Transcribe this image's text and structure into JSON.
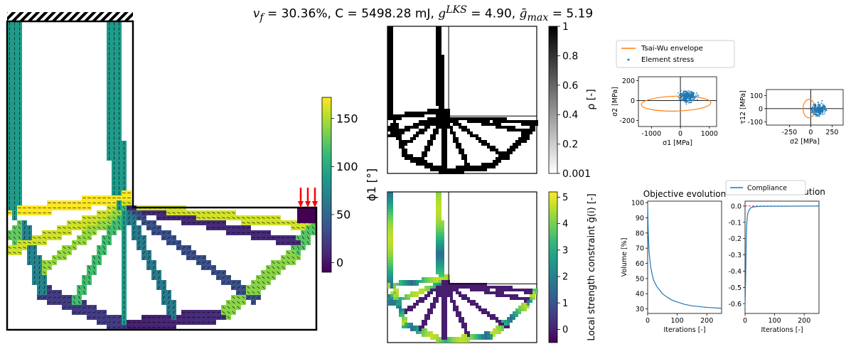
{
  "figure": {
    "title_parts": {
      "vf_label": "v",
      "vf_sub": "f",
      "vf_value": " = 30.36%, ",
      "c_text": "C = 5498.28 mJ, ",
      "g_label": "g",
      "g_sup": "LKS",
      "g_value": " = 4.90, ",
      "gmax_label": "ḡ",
      "gmax_sub": "max",
      "gmax_value": " = 5.19"
    },
    "colors": {
      "viridis": [
        "#440154",
        "#482878",
        "#3e4989",
        "#31688e",
        "#26828e",
        "#1f9e89",
        "#35b779",
        "#6ece58",
        "#b5de2b",
        "#fde725"
      ],
      "series_blue": "#1f77b4",
      "envelope_orange": "#ff7f0e",
      "load_arrow_red": "#ff0000",
      "constraint_dashed_red": "#d62728"
    }
  },
  "chart_data": [
    {
      "id": "fiber_orientation_field",
      "type": "heatmap",
      "colorbar": {
        "label": "ϕ1 [°]",
        "ticks": [
          "0",
          "50",
          "100",
          "150"
        ],
        "range": [
          -10,
          172
        ]
      },
      "load_arrows": 3
    },
    {
      "id": "density_field",
      "type": "heatmap",
      "colorbar": {
        "label": "ρ [-]",
        "ticks": [
          "0.001",
          "0.2",
          "0.4",
          "0.6",
          "0.8",
          "1"
        ],
        "range": [
          0.001,
          1
        ]
      }
    },
    {
      "id": "local_strength_constraint_field",
      "type": "heatmap",
      "colorbar": {
        "label": "Local strength constraint ḡ(i) [-]",
        "ticks": [
          "0",
          "1",
          "2",
          "3",
          "4",
          "5"
        ],
        "range": [
          -0.5,
          5.2
        ]
      }
    },
    {
      "id": "stress_sigma1_sigma2",
      "type": "scatter",
      "legend": {
        "entries": [
          "Tsai-Wu envelope",
          "Element stress"
        ],
        "placement": "top"
      },
      "xlabel": "σ1 [MPa]",
      "ylabel": "σ2 [MPa]",
      "xlim": [
        -1450,
        1250
      ],
      "ylim": [
        -260,
        240
      ],
      "xticks": [
        -1000,
        0,
        1000
      ],
      "yticks": [
        -200,
        0,
        200
      ],
      "envelope": {
        "type": "ellipse",
        "center": [
          -150,
          -30
        ],
        "semi_major": 1200,
        "semi_minor": 75,
        "angle_deg": 1.5
      },
      "cluster": {
        "center": [
          250,
          40
        ],
        "spread": [
          300,
          60
        ],
        "count": 260
      }
    },
    {
      "id": "stress_sigma2_tau12",
      "type": "scatter",
      "xlabel": "σ2 [MPa]",
      "ylabel": "τ12 [MPa]",
      "xlim": [
        -520,
        380
      ],
      "ylim": [
        -125,
        145
      ],
      "xticks": [
        -250,
        0,
        250
      ],
      "yticks": [
        -100,
        0,
        100
      ],
      "envelope": {
        "type": "ellipse",
        "center": [
          -20,
          0
        ],
        "rx": 70,
        "ry": 70
      },
      "cluster": {
        "center": [
          90,
          -5
        ],
        "spread": [
          90,
          55
        ],
        "count": 240
      }
    },
    {
      "id": "objective_evolution",
      "type": "line",
      "title": "Objective evolution",
      "xlabel": "Iterations [-]",
      "ylabel": "Volume [%]",
      "xlim": [
        0,
        250
      ],
      "ylim": [
        27,
        101
      ],
      "xticks": [
        0,
        100,
        200
      ],
      "yticks": [
        30,
        40,
        50,
        60,
        70,
        80,
        90,
        100
      ],
      "series": [
        {
          "x": [
            0,
            2,
            5,
            10,
            15,
            20,
            30,
            40,
            50,
            60,
            80,
            100,
            125,
            150,
            200,
            250
          ],
          "y": [
            99,
            80,
            67,
            58,
            53,
            49,
            45,
            42.5,
            40,
            38.5,
            36,
            34.5,
            33,
            32,
            31,
            30.4
          ]
        }
      ]
    },
    {
      "id": "constraint_evolution",
      "type": "line",
      "title": "Constraint evolution",
      "legend": {
        "entries": [
          "Compliance"
        ],
        "placement": "top"
      },
      "xlabel": "Iterations [-]",
      "ylabel": "",
      "xlim": [
        0,
        250
      ],
      "ylim": [
        -0.66,
        0.03
      ],
      "xticks": [
        0,
        100,
        200
      ],
      "yticks": [
        0,
        -0.1,
        -0.2,
        -0.3,
        -0.4,
        -0.5,
        -0.6
      ],
      "series": [
        {
          "name": "Compliance",
          "x": [
            0,
            2,
            4,
            6,
            8,
            10,
            15,
            20,
            30,
            50,
            250
          ],
          "y": [
            -0.62,
            -0.45,
            -0.2,
            -0.1,
            -0.06,
            -0.04,
            -0.02,
            -0.01,
            -0.005,
            -0.002,
            0
          ]
        }
      ]
    }
  ]
}
